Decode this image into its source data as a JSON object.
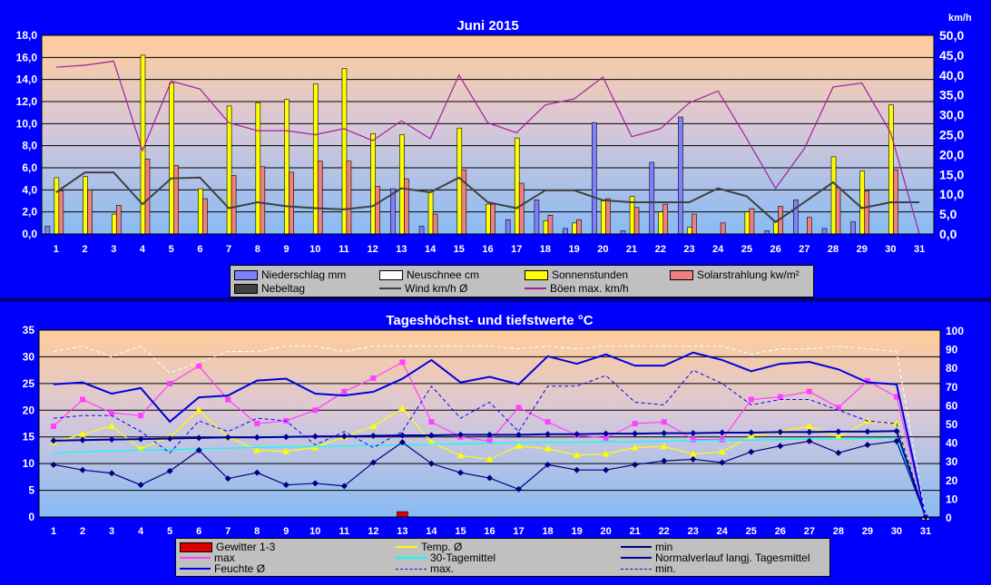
{
  "chart_data": [
    {
      "type": "bar",
      "title": "Juni  2015",
      "ylabel_right": "km/h",
      "ylim_left": [
        0,
        18
      ],
      "ylim_right": [
        0,
        50
      ],
      "yticks_left": [
        "0,0",
        "2,0",
        "4,0",
        "6,0",
        "8,0",
        "10,0",
        "12,0",
        "14,0",
        "16,0",
        "18,0"
      ],
      "yticks_right": [
        "0,0",
        "5,0",
        "10,0",
        "15,0",
        "20,0",
        "25,0",
        "30,0",
        "35,0",
        "40,0",
        "45,0",
        "50,0"
      ],
      "categories": [
        "1",
        "2",
        "3",
        "4",
        "5",
        "6",
        "7",
        "8",
        "9",
        "10",
        "11",
        "12",
        "13",
        "14",
        "15",
        "16",
        "17",
        "18",
        "19",
        "20",
        "21",
        "22",
        "23",
        "24",
        "25",
        "26",
        "27",
        "28",
        "29",
        "30",
        "31"
      ],
      "series": [
        {
          "name": "Niederschlag mm",
          "axis": "left",
          "kind": "bar",
          "color": "#8080ff",
          "values": [
            0.7,
            0,
            0,
            0,
            0,
            0,
            0,
            0,
            0,
            0,
            0,
            0,
            4.1,
            0.7,
            0,
            0,
            1.3,
            3.1,
            0.5,
            10.1,
            0.3,
            6.5,
            10.6,
            0,
            0,
            0.3,
            3.1,
            0.5,
            1.1,
            0,
            0
          ]
        },
        {
          "name": "Neuschnee cm",
          "axis": "left",
          "kind": "bar",
          "color": "#ffffff",
          "values": [
            0,
            0,
            0,
            0,
            0,
            0,
            0,
            0,
            0,
            0,
            0,
            0,
            0,
            0,
            0,
            0,
            0,
            0,
            0,
            0,
            0,
            0,
            0,
            0,
            0,
            0,
            0,
            0,
            0,
            0,
            0
          ]
        },
        {
          "name": "Sonnenstunden",
          "axis": "left",
          "kind": "bar",
          "color": "#ffff00",
          "values": [
            5.1,
            5.2,
            1.8,
            16.2,
            13.7,
            4.1,
            11.6,
            11.9,
            12.2,
            13.6,
            15.0,
            9.1,
            9.0,
            3.8,
            9.6,
            2.7,
            8.7,
            1.2,
            1.0,
            3.0,
            3.4,
            2.0,
            0.6,
            0,
            2.0,
            1.1,
            0,
            7.0,
            5.7,
            11.7,
            0
          ]
        },
        {
          "name": "Solarstrahlung kw/m²",
          "axis": "left",
          "kind": "bar",
          "color": "#f08080",
          "values": [
            3.9,
            4.0,
            2.6,
            6.8,
            6.2,
            3.2,
            5.3,
            6.1,
            5.6,
            6.6,
            6.6,
            4.3,
            5.0,
            1.8,
            5.8,
            2.7,
            4.6,
            1.7,
            1.3,
            3.2,
            2.4,
            2.7,
            1.8,
            1.0,
            2.3,
            2.5,
            1.5,
            4.2,
            3.9,
            5.8,
            0
          ]
        },
        {
          "name": "Nebeltag",
          "axis": "left",
          "kind": "bar",
          "color": "#404040",
          "values": [
            0,
            0,
            0,
            0,
            0,
            0,
            0,
            0,
            0,
            0,
            0,
            0,
            0,
            0,
            0,
            0,
            0,
            0,
            0,
            0,
            0,
            0,
            0,
            0,
            0,
            0,
            0,
            0,
            0,
            0,
            0
          ]
        },
        {
          "name": "Wind km/h Ø",
          "axis": "right",
          "kind": "line",
          "color": "#404040",
          "values": [
            10.5,
            15.5,
            15.5,
            7.5,
            14.0,
            14.2,
            6.5,
            8.0,
            7.0,
            6.5,
            6.2,
            7.0,
            11.5,
            10.5,
            14.2,
            8.0,
            6.5,
            11.0,
            11.0,
            8.5,
            8.0,
            8.0,
            8.0,
            11.5,
            9.5,
            3.0,
            8.0,
            13.0,
            6.5,
            8.0,
            8.0
          ]
        },
        {
          "name": "Böen max. km/h",
          "axis": "right",
          "kind": "line",
          "color": "#a020a0",
          "values": [
            42.0,
            42.5,
            43.5,
            21.0,
            38.5,
            36.5,
            28.0,
            26.0,
            26.0,
            25.0,
            26.5,
            23.5,
            28.5,
            24.0,
            40.0,
            28.0,
            25.5,
            32.5,
            34.0,
            39.5,
            24.5,
            26.5,
            33.0,
            36.0,
            24.0,
            11.5,
            21.5,
            37.0,
            38.0,
            25.5,
            0
          ]
        }
      ],
      "legend": [
        "Niederschlag mm",
        "Neuschnee cm",
        "Sonnenstunden",
        "Solarstrahlung kw/m²",
        "Nebeltag",
        "Wind km/h Ø",
        "Böen max. km/h"
      ],
      "legend_position": "bottom",
      "grid": true
    },
    {
      "type": "line",
      "title": "Tageshöchst- und tiefstwerte °C",
      "ylim_left": [
        0,
        35
      ],
      "ylim_right": [
        0,
        100
      ],
      "yticks_left": [
        "0",
        "5",
        "10",
        "15",
        "20",
        "25",
        "30",
        "35"
      ],
      "yticks_right": [
        "0",
        "10",
        "20",
        "30",
        "40",
        "50",
        "60",
        "70",
        "80",
        "90",
        "100"
      ],
      "categories": [
        "1",
        "2",
        "3",
        "4",
        "5",
        "6",
        "7",
        "8",
        "9",
        "10",
        "11",
        "12",
        "13",
        "14",
        "15",
        "16",
        "17",
        "18",
        "19",
        "20",
        "21",
        "22",
        "23",
        "24",
        "25",
        "26",
        "27",
        "28",
        "29",
        "30",
        "31"
      ],
      "series": [
        {
          "name": "Gewitter 1-3",
          "axis": "left",
          "kind": "bar",
          "color": "#e00000",
          "values": [
            0,
            0,
            0,
            0,
            0,
            0,
            0,
            0,
            0,
            0,
            0,
            0,
            1,
            0,
            0,
            0,
            0,
            0,
            0,
            0,
            0,
            0,
            0,
            0,
            0,
            0,
            0,
            0,
            0,
            0,
            0
          ]
        },
        {
          "name": "max",
          "axis": "left",
          "kind": "line",
          "color": "#ff40ff",
          "marker": "square",
          "values": [
            17.0,
            22.0,
            19.5,
            19.0,
            25.0,
            28.3,
            22.0,
            17.5,
            18.0,
            20.0,
            23.5,
            26.0,
            29.0,
            17.8,
            15.0,
            14.2,
            20.5,
            17.8,
            15.3,
            14.8,
            17.5,
            17.8,
            14.5,
            14.5,
            22.0,
            22.5,
            23.5,
            20.5,
            25.5,
            22.5,
            0
          ]
        },
        {
          "name": "Temp. Ø",
          "axis": "left",
          "kind": "line",
          "color": "#ffff00",
          "marker": "triangle",
          "values": [
            14.0,
            15.5,
            17.0,
            12.8,
            15.0,
            20.0,
            15.0,
            12.5,
            12.3,
            13.0,
            15.0,
            17.0,
            20.3,
            14.0,
            11.5,
            10.8,
            13.3,
            12.8,
            11.6,
            11.8,
            13.0,
            13.2,
            11.8,
            12.2,
            15.2,
            16.0,
            17.0,
            15.0,
            18.0,
            17.5,
            0
          ]
        },
        {
          "name": "30-Tagemittel",
          "axis": "left",
          "kind": "line",
          "color": "#00ffff",
          "values": [
            12.0,
            12.2,
            12.4,
            12.5,
            12.6,
            12.8,
            12.9,
            13.0,
            13.1,
            13.2,
            13.3,
            13.4,
            13.5,
            13.6,
            13.7,
            13.8,
            13.9,
            14.0,
            14.0,
            14.1,
            14.1,
            14.2,
            14.3,
            14.4,
            14.4,
            14.5,
            14.6,
            14.6,
            14.7,
            14.8,
            0
          ]
        },
        {
          "name": "Feuchte Ø",
          "axis": "right",
          "kind": "line",
          "color": "#0000e0",
          "values": [
            71,
            72,
            66,
            69,
            51,
            64,
            65,
            73,
            74,
            66,
            65,
            67,
            74,
            84,
            72,
            75,
            71,
            86,
            82,
            87,
            81,
            81,
            88,
            84,
            78,
            82,
            83,
            79,
            72,
            71,
            0
          ]
        },
        {
          "name": "min",
          "axis": "left",
          "kind": "line",
          "color": "#000080",
          "marker": "diamond",
          "values": [
            9.8,
            8.8,
            8.2,
            6.0,
            8.6,
            12.5,
            7.2,
            8.3,
            6.0,
            6.3,
            5.8,
            10.2,
            14.0,
            10.0,
            8.3,
            7.3,
            5.2,
            9.8,
            8.8,
            8.8,
            9.8,
            10.5,
            10.8,
            10.2,
            12.2,
            13.3,
            14.2,
            12.0,
            13.5,
            14.2,
            0
          ]
        },
        {
          "name": "Normalverlauf langj. Tagesmittel",
          "axis": "left",
          "kind": "line",
          "color": "#0000a0",
          "marker": "diamond",
          "values": [
            14.3,
            14.4,
            14.5,
            14.6,
            14.7,
            14.8,
            14.9,
            14.9,
            15.0,
            15.1,
            15.1,
            15.2,
            15.3,
            15.3,
            15.4,
            15.4,
            15.4,
            15.5,
            15.5,
            15.6,
            15.6,
            15.7,
            15.7,
            15.8,
            15.8,
            15.9,
            15.9,
            16.0,
            16.0,
            16.1,
            0
          ]
        },
        {
          "name": "max.",
          "axis": "left",
          "kind": "dashed",
          "color": "#ffffff",
          "values": [
            31.0,
            32.0,
            30.0,
            32.0,
            27.0,
            29.0,
            31.0,
            31.0,
            32.0,
            32.0,
            31.0,
            32.0,
            32.0,
            32.0,
            32.0,
            32.0,
            31.5,
            32.0,
            31.5,
            32.0,
            32.0,
            32.0,
            32.0,
            32.0,
            30.5,
            31.5,
            31.5,
            32.0,
            31.5,
            31.0,
            0
          ]
        },
        {
          "name": "min.",
          "axis": "left",
          "kind": "dashed",
          "color": "#0000ff",
          "values": [
            18.5,
            19.0,
            19.0,
            16.0,
            12.0,
            18.0,
            16.0,
            18.5,
            18.0,
            13.5,
            16.0,
            13.0,
            16.0,
            24.5,
            18.5,
            21.5,
            16.0,
            24.5,
            24.5,
            26.5,
            21.5,
            21.0,
            27.5,
            25.0,
            21.0,
            22.0,
            22.0,
            20.0,
            18.0,
            17.5,
            0
          ]
        }
      ],
      "legend": [
        "Gewitter 1-3",
        "Temp. Ø",
        "min",
        "max",
        "30-Tagemittel",
        "Normalverlauf langj. Tagesmittel",
        "Feuchte Ø",
        "max.",
        "min."
      ],
      "legend_position": "bottom",
      "grid": true
    }
  ]
}
